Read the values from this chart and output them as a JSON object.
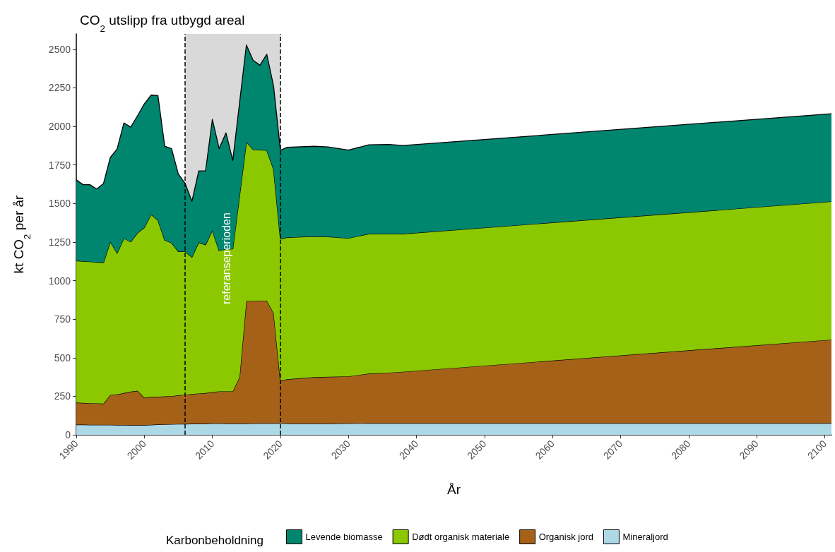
{
  "chart_data": {
    "type": "area",
    "title": "CO$_{2}$ utslipp fra utbygd areal",
    "xlabel": "År",
    "ylabel": "kt CO$_{2}$ per år",
    "legend_title": "Karbonbeholdning",
    "x": [
      1990,
      1991,
      1992,
      1993,
      1994,
      1995,
      1996,
      1997,
      1998,
      1999,
      2000,
      2001,
      2002,
      2003,
      2004,
      2005,
      2006,
      2007,
      2008,
      2009,
      2010,
      2011,
      2012,
      2013,
      2014,
      2015,
      2016,
      2017,
      2018,
      2019,
      2020,
      2021,
      2025,
      2027,
      2030,
      2033,
      2036,
      2038,
      2101
    ],
    "stacked": true,
    "series": [
      {
        "name": "Mineraljord",
        "color": "#add8e6",
        "values": [
          66,
          66,
          65,
          65,
          65,
          65,
          64,
          64,
          63,
          63,
          63,
          65,
          67,
          68,
          69,
          70,
          71,
          72,
          72,
          72,
          74,
          74,
          73,
          73,
          73,
          73,
          74,
          74,
          74,
          75,
          75,
          73,
          73,
          73,
          74,
          75,
          75,
          75,
          75
        ]
      },
      {
        "name": "Organisk jord",
        "color": "#a66119",
        "values": [
          143,
          141,
          140,
          139,
          137,
          194,
          198,
          207,
          217,
          223,
          177,
          181,
          180,
          181,
          182,
          186,
          189,
          192,
          196,
          199,
          203,
          208,
          209,
          209,
          301,
          794,
          794,
          796,
          796,
          715,
          276,
          287,
          301,
          303,
          305,
          322,
          328,
          334,
          542
        ]
      },
      {
        "name": "Dødt organisk materiale",
        "color": "#8bc800",
        "values": [
          920,
          919,
          918,
          916,
          916,
          993,
          916,
          1004,
          972,
          1023,
          1104,
          1183,
          1144,
          1014,
          994,
          933,
          929,
          888,
          980,
          961,
          1048,
          913,
          922,
          924,
          1176,
          1032,
          982,
          978,
          975,
          932,
          919,
          920,
          913,
          909,
          896,
          906,
          900,
          894,
          896
        ]
      },
      {
        "name": "Levende biomasse",
        "color": "#00856f",
        "values": [
          524,
          496,
          499,
          474,
          512,
          547,
          675,
          748,
          743,
          760,
          802,
          774,
          809,
          609,
          611,
          502,
          441,
          362,
          463,
          479,
          721,
          661,
          754,
          573,
          603,
          629,
          578,
          549,
          623,
          539,
          575,
          585,
          584,
          582,
          571,
          578,
          580,
          573,
          569
        ]
      }
    ],
    "xlim": [
      1990,
      2101
    ],
    "xticks": [
      1990,
      2000,
      2010,
      2020,
      2030,
      2040,
      2050,
      2060,
      2070,
      2080,
      2090,
      2100
    ],
    "ylim": [
      0,
      2600
    ],
    "yticks": [
      0,
      250,
      500,
      750,
      1000,
      1250,
      1500,
      1750,
      2000,
      2250,
      2500
    ],
    "bands": [
      {
        "axis": "x",
        "from": 2006,
        "to": 2020,
        "label": "referanseperioden",
        "color": "#d9d9d9"
      }
    ],
    "ref_lines": [
      {
        "axis": "x",
        "value": 2006,
        "line_style": "dashed"
      },
      {
        "axis": "x",
        "value": 2020,
        "line_style": "dashed"
      }
    ],
    "grid": false,
    "legend": "bottom"
  }
}
